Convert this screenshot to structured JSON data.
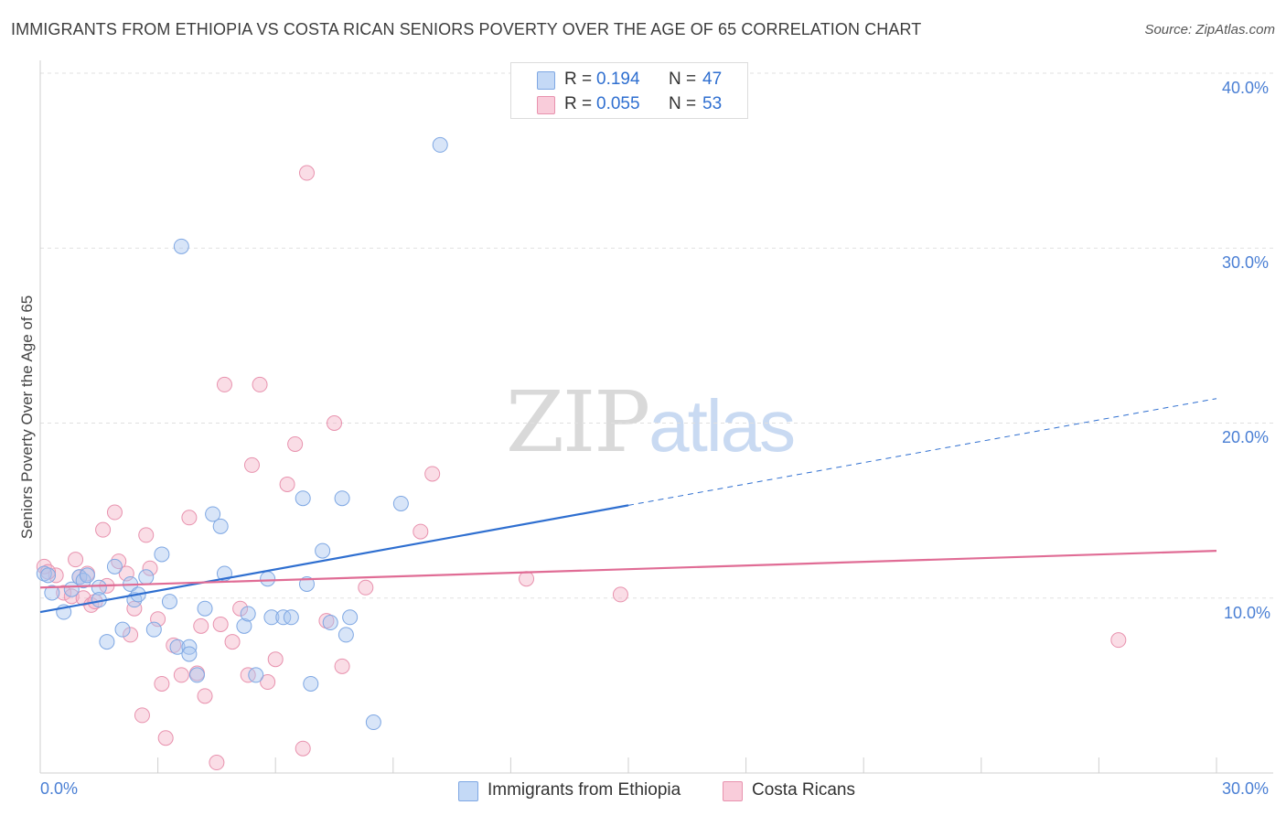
{
  "header": {
    "title": "IMMIGRANTS FROM ETHIOPIA VS COSTA RICAN SENIORS POVERTY OVER THE AGE OF 65 CORRELATION CHART",
    "source": "Source: ZipAtlas.com"
  },
  "watermark": {
    "part1": "ZIP",
    "part2": "atlas"
  },
  "legend_top": {
    "rows": [
      {
        "r_label": "R =",
        "r_value": "0.194",
        "n_label": "N =",
        "n_value": "47"
      },
      {
        "r_label": "R =",
        "r_value": "0.055",
        "n_label": "N =",
        "n_value": "53"
      }
    ]
  },
  "colors": {
    "blue_fill": "#a9c6f0",
    "blue_stroke": "#7ea7e3",
    "blue_line": "#2f6fd0",
    "pink_fill": "#f4b3c8",
    "pink_stroke": "#e892ae",
    "pink_line": "#e06c95",
    "axis_text": "#4a7fd4",
    "grid": "#e0e0e0"
  },
  "chart_data": {
    "type": "scatter",
    "title": "IMMIGRANTS FROM ETHIOPIA VS COSTA RICAN SENIORS POVERTY OVER THE AGE OF 65 CORRELATION CHART",
    "xlabel": "",
    "ylabel": "Seniors Poverty Over the Age of 65",
    "xlim": [
      0,
      30
    ],
    "ylim": [
      0,
      40
    ],
    "x_tick_labels": [
      "0.0%",
      "30.0%"
    ],
    "y_tick_labels": [
      "10.0%",
      "20.0%",
      "30.0%",
      "40.0%"
    ],
    "y_ticks": [
      10,
      20,
      30,
      40
    ],
    "grid": true,
    "legend_position": "top-center",
    "series": [
      {
        "name": "Immigrants from Ethiopia",
        "color": "#a9c6f0",
        "r": "0.194",
        "n": "47",
        "trend": {
          "x": [
            0,
            15
          ],
          "y": [
            9.2,
            15.3
          ],
          "dashed_to": [
            30,
            21.4
          ]
        },
        "points": [
          [
            0.1,
            11.4
          ],
          [
            0.3,
            10.3
          ],
          [
            0.6,
            9.2
          ],
          [
            0.8,
            10.5
          ],
          [
            1.0,
            11.2
          ],
          [
            1.1,
            11.0
          ],
          [
            1.2,
            11.3
          ],
          [
            1.5,
            10.6
          ],
          [
            1.5,
            9.9
          ],
          [
            1.7,
            7.5
          ],
          [
            1.9,
            11.8
          ],
          [
            2.1,
            8.2
          ],
          [
            2.3,
            10.8
          ],
          [
            2.4,
            9.9
          ],
          [
            2.5,
            10.2
          ],
          [
            2.7,
            11.2
          ],
          [
            2.9,
            8.2
          ],
          [
            3.1,
            12.5
          ],
          [
            3.3,
            9.8
          ],
          [
            3.5,
            7.2
          ],
          [
            3.6,
            30.1
          ],
          [
            3.8,
            7.2
          ],
          [
            3.8,
            6.8
          ],
          [
            4.0,
            5.6
          ],
          [
            4.2,
            9.4
          ],
          [
            4.4,
            14.8
          ],
          [
            4.6,
            14.1
          ],
          [
            4.7,
            11.4
          ],
          [
            5.2,
            8.4
          ],
          [
            5.3,
            9.1
          ],
          [
            5.5,
            5.6
          ],
          [
            5.8,
            11.1
          ],
          [
            5.9,
            8.9
          ],
          [
            6.2,
            8.9
          ],
          [
            6.4,
            8.9
          ],
          [
            6.7,
            15.7
          ],
          [
            6.8,
            10.8
          ],
          [
            6.9,
            5.1
          ],
          [
            7.2,
            12.7
          ],
          [
            7.4,
            8.6
          ],
          [
            7.7,
            15.7
          ],
          [
            7.8,
            7.9
          ],
          [
            7.9,
            8.9
          ],
          [
            8.5,
            2.9
          ],
          [
            9.2,
            15.4
          ],
          [
            10.2,
            35.9
          ],
          [
            0.2,
            11.3
          ]
        ]
      },
      {
        "name": "Costa Ricans",
        "color": "#f4b3c8",
        "r": "0.055",
        "n": "53",
        "trend": {
          "x": [
            0,
            30
          ],
          "y": [
            10.6,
            12.7
          ]
        },
        "points": [
          [
            0.1,
            11.8
          ],
          [
            0.4,
            11.3
          ],
          [
            0.6,
            10.3
          ],
          [
            0.8,
            10.1
          ],
          [
            0.9,
            12.2
          ],
          [
            1.0,
            11.2
          ],
          [
            1.1,
            10.0
          ],
          [
            1.2,
            11.4
          ],
          [
            1.3,
            9.6
          ],
          [
            1.4,
            9.8
          ],
          [
            1.6,
            13.9
          ],
          [
            1.7,
            10.7
          ],
          [
            1.9,
            14.9
          ],
          [
            2.0,
            12.1
          ],
          [
            2.2,
            11.4
          ],
          [
            2.3,
            7.9
          ],
          [
            2.4,
            9.4
          ],
          [
            2.6,
            3.3
          ],
          [
            2.7,
            13.6
          ],
          [
            2.8,
            11.7
          ],
          [
            3.0,
            8.8
          ],
          [
            3.1,
            5.1
          ],
          [
            3.2,
            2.0
          ],
          [
            3.4,
            7.3
          ],
          [
            3.6,
            5.6
          ],
          [
            3.8,
            14.6
          ],
          [
            4.0,
            5.7
          ],
          [
            4.1,
            8.4
          ],
          [
            4.2,
            4.4
          ],
          [
            4.5,
            0.6
          ],
          [
            4.6,
            8.5
          ],
          [
            4.7,
            22.2
          ],
          [
            4.9,
            7.5
          ],
          [
            5.1,
            9.4
          ],
          [
            5.3,
            5.6
          ],
          [
            5.4,
            17.6
          ],
          [
            5.6,
            22.2
          ],
          [
            5.8,
            5.2
          ],
          [
            6.0,
            6.5
          ],
          [
            6.3,
            16.5
          ],
          [
            6.5,
            18.8
          ],
          [
            6.7,
            1.4
          ],
          [
            6.8,
            34.3
          ],
          [
            7.3,
            8.7
          ],
          [
            7.5,
            20.0
          ],
          [
            7.7,
            6.1
          ],
          [
            8.3,
            10.6
          ],
          [
            9.7,
            13.8
          ],
          [
            10.0,
            17.1
          ],
          [
            12.4,
            11.1
          ],
          [
            14.8,
            10.2
          ],
          [
            27.5,
            7.6
          ],
          [
            0.2,
            11.5
          ]
        ]
      }
    ]
  },
  "legend_bottom": {
    "items": [
      {
        "label": "Immigrants from Ethiopia"
      },
      {
        "label": "Costa Ricans"
      }
    ]
  }
}
